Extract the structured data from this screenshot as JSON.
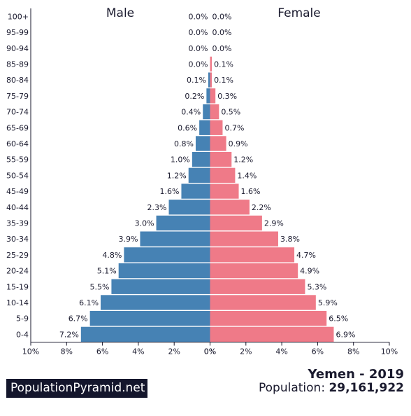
{
  "colors": {
    "male": "#4682b4",
    "female": "#ef7a88",
    "axis": "#1a1a2e"
  },
  "brand": "PopulationPyramid.net",
  "footer": {
    "country_year": "Yemen - 2019",
    "population_label": "Population:",
    "population_value": "29,161,922"
  },
  "chart_data": {
    "type": "bar",
    "orientation": "horizontal-pyramid",
    "left_title": "Male",
    "right_title": "Female",
    "categories": [
      "100+",
      "95-99",
      "90-94",
      "85-89",
      "80-84",
      "75-79",
      "70-74",
      "65-69",
      "60-64",
      "55-59",
      "50-54",
      "45-49",
      "40-44",
      "35-39",
      "30-34",
      "25-29",
      "20-24",
      "15-19",
      "10-14",
      "5-9",
      "0-4"
    ],
    "series": [
      {
        "name": "Male",
        "values": [
          0.0,
          0.0,
          0.0,
          0.0,
          0.1,
          0.2,
          0.4,
          0.6,
          0.8,
          1.0,
          1.2,
          1.6,
          2.3,
          3.0,
          3.9,
          4.8,
          5.1,
          5.5,
          6.1,
          6.7,
          7.2
        ],
        "labels": [
          "0.0%",
          "0.0%",
          "0.0%",
          "0.0%",
          "0.1%",
          "0.2%",
          "0.4%",
          "0.6%",
          "0.8%",
          "1.0%",
          "1.2%",
          "1.6%",
          "2.3%",
          "3.0%",
          "3.9%",
          "4.8%",
          "5.1%",
          "5.5%",
          "6.1%",
          "6.7%",
          "7.2%"
        ]
      },
      {
        "name": "Female",
        "values": [
          0.0,
          0.0,
          0.0,
          0.1,
          0.1,
          0.3,
          0.5,
          0.7,
          0.9,
          1.2,
          1.4,
          1.6,
          2.2,
          2.9,
          3.8,
          4.7,
          4.9,
          5.3,
          5.9,
          6.5,
          6.9
        ],
        "labels": [
          "0.0%",
          "0.0%",
          "0.0%",
          "0.1%",
          "0.1%",
          "0.3%",
          "0.5%",
          "0.7%",
          "0.9%",
          "1.2%",
          "1.4%",
          "1.6%",
          "2.2%",
          "2.9%",
          "3.8%",
          "4.7%",
          "4.9%",
          "5.3%",
          "5.9%",
          "6.5%",
          "6.9%"
        ]
      }
    ],
    "xlim": [
      0,
      10
    ],
    "ticks_left": [
      "10%",
      "8%",
      "6%",
      "4%",
      "2%",
      "0%"
    ],
    "ticks_right": [
      "0%",
      "2%",
      "4%",
      "6%",
      "8%",
      "10%"
    ],
    "grid": false
  }
}
